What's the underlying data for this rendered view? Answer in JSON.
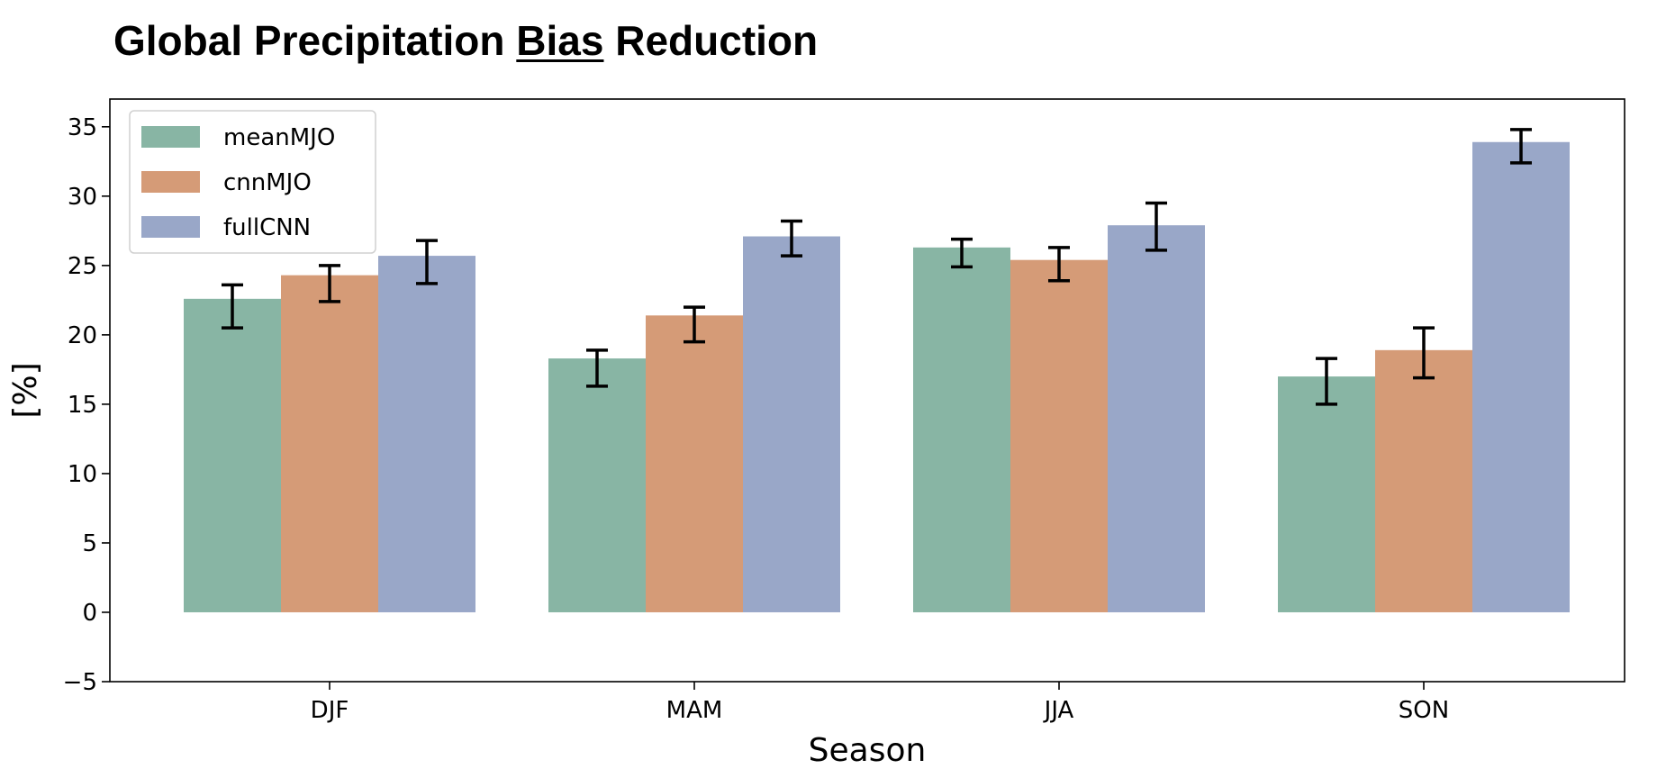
{
  "title": {
    "prefix": "Global Precipitation ",
    "emphasis": "Bias",
    "suffix": " Reduction"
  },
  "chart_data": {
    "type": "bar",
    "xlabel": "Season",
    "ylabel": "[%]",
    "ylim": [
      -5,
      37
    ],
    "yticks": [
      -5,
      0,
      5,
      10,
      15,
      20,
      25,
      30,
      35
    ],
    "ytick_labels": [
      "−5",
      "0",
      "5",
      "10",
      "15",
      "20",
      "25",
      "30",
      "35"
    ],
    "categories": [
      "DJF",
      "MAM",
      "JJA",
      "SON"
    ],
    "series": [
      {
        "name": "meanMJO",
        "color": "#88b5a4",
        "values": [
          22.6,
          18.3,
          26.3,
          17.0
        ],
        "err_low": [
          20.5,
          16.3,
          24.9,
          15.0
        ],
        "err_high": [
          23.6,
          18.9,
          26.9,
          18.3
        ]
      },
      {
        "name": "cnnMJO",
        "color": "#d59b77",
        "values": [
          24.3,
          21.4,
          25.4,
          18.9
        ],
        "err_low": [
          22.4,
          19.5,
          23.9,
          16.9
        ],
        "err_high": [
          25.0,
          22.0,
          26.3,
          20.5
        ]
      },
      {
        "name": "fullCNN",
        "color": "#99a7c8",
        "values": [
          25.7,
          27.1,
          27.9,
          33.9
        ],
        "err_low": [
          23.7,
          25.7,
          26.1,
          32.4
        ],
        "err_high": [
          26.8,
          28.2,
          29.5,
          34.8
        ]
      }
    ],
    "legend_position": "top-left",
    "grid": false
  }
}
